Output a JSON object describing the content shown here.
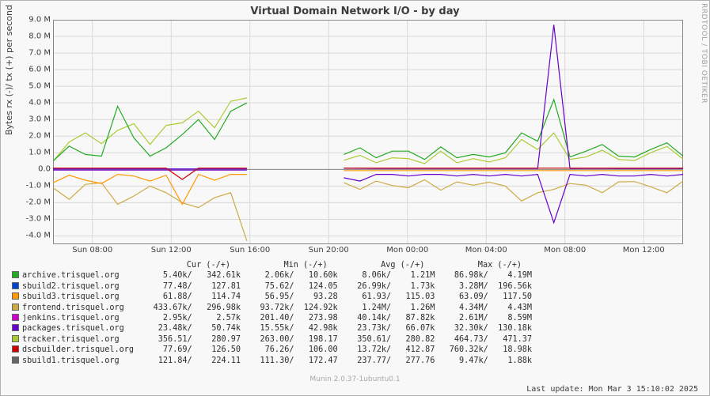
{
  "title": "Virtual Domain Network I/O - by day",
  "y_axis": {
    "label": "Bytes rx (-)/ tx (+) per second",
    "min": -4500000,
    "max": 9000000,
    "ticks": [
      {
        "v": 9000000,
        "label": "9.0 M"
      },
      {
        "v": 8000000,
        "label": "8.0 M"
      },
      {
        "v": 7000000,
        "label": "7.0 M"
      },
      {
        "v": 6000000,
        "label": "6.0 M"
      },
      {
        "v": 5000000,
        "label": "5.0 M"
      },
      {
        "v": 4000000,
        "label": "4.0 M"
      },
      {
        "v": 3000000,
        "label": "3.0 M"
      },
      {
        "v": 2000000,
        "label": "2.0 M"
      },
      {
        "v": 1000000,
        "label": "1.0 M"
      },
      {
        "v": 0,
        "label": "0.0"
      },
      {
        "v": -1000000,
        "label": "-1.0 M"
      },
      {
        "v": -2000000,
        "label": "-2.0 M"
      },
      {
        "v": -3000000,
        "label": "-3.0 M"
      },
      {
        "v": -4000000,
        "label": "-4.0 M"
      }
    ]
  },
  "x_axis": {
    "min": 0,
    "max": 32,
    "ticks": [
      {
        "v": 2,
        "label": "Sun 08:00"
      },
      {
        "v": 6,
        "label": "Sun 12:00"
      },
      {
        "v": 10,
        "label": "Sun 16:00"
      },
      {
        "v": 14,
        "label": "Sun 20:00"
      },
      {
        "v": 18,
        "label": "Mon 00:00"
      },
      {
        "v": 22,
        "label": "Mon 04:00"
      },
      {
        "v": 26,
        "label": "Mon 08:00"
      },
      {
        "v": 30,
        "label": "Mon 12:00"
      }
    ]
  },
  "colors": {
    "archive": "#22aa22",
    "sbuild2": "#0044cc",
    "sbuild3": "#ff9900",
    "frontend": "#ccaa44",
    "jenkins": "#cc00cc",
    "packages": "#6600cc",
    "tracker": "#aacc33",
    "dscbuilder": "#cc0000",
    "sbuild1": "#666666",
    "grid": "#d8d8d8",
    "axis": "#888888",
    "bg": "#f8f8f8"
  },
  "gap": {
    "start": 6.4,
    "end": 24.3
  },
  "series_tx": {
    "archive": [
      500000,
      1400000,
      900000,
      800000,
      3800000,
      1900000,
      800000,
      1300000,
      2100000,
      3000000,
      1800000,
      3500000,
      4000000,
      null,
      null,
      null,
      null,
      null,
      900000,
      1300000,
      700000,
      1100000,
      1100000,
      600000,
      1350000,
      700000,
      900000,
      750000,
      1000000,
      2200000,
      1700000,
      4200000,
      750000,
      1100000,
      1500000,
      800000,
      750000,
      1200000,
      1600000,
      800000
    ],
    "tracker": [
      480000,
      1650000,
      2200000,
      1550000,
      2350000,
      2750000,
      1500000,
      2650000,
      2800000,
      3500000,
      2500000,
      4100000,
      4300000,
      null,
      null,
      null,
      null,
      null,
      550000,
      850000,
      400000,
      700000,
      650000,
      350000,
      1100000,
      400000,
      650000,
      450000,
      700000,
      1800000,
      1200000,
      2200000,
      600000,
      750000,
      1150000,
      600000,
      540000,
      1010000,
      1380000,
      620000
    ],
    "packages": [
      30000,
      30000,
      30000,
      30000,
      30000,
      30000,
      30000,
      30000,
      30000,
      30000,
      30000,
      30000,
      30000,
      null,
      null,
      null,
      null,
      null,
      80000,
      70000,
      60000,
      60000,
      55000,
      60000,
      55000,
      60000,
      55000,
      60000,
      60000,
      60000,
      60000,
      8700000,
      50000,
      60000,
      60000,
      50000,
      50000,
      50000,
      50000,
      50000
    ],
    "dscbuilder": [
      80000,
      80000,
      80000,
      80000,
      80000,
      80000,
      80000,
      80000,
      -600000,
      80000,
      80000,
      80000,
      80000,
      null,
      null,
      null,
      null,
      null,
      80000,
      80000,
      80000,
      80000,
      80000,
      80000,
      80000,
      80000,
      80000,
      80000,
      80000,
      80000,
      80000,
      80000,
      80000,
      80000,
      80000,
      80000,
      80000,
      80000,
      80000,
      80000
    ]
  },
  "series_rx": {
    "frontend": [
      -1100000,
      -1800000,
      -900000,
      -800000,
      -2100000,
      -1600000,
      -1000000,
      -1400000,
      -2000000,
      -2300000,
      -1700000,
      -1400000,
      -4300000,
      null,
      null,
      null,
      null,
      null,
      -800000,
      -1200000,
      -700000,
      -970000,
      -1100000,
      -620000,
      -1250000,
      -750000,
      -950000,
      -770000,
      -1000000,
      -1900000,
      -1400000,
      -1200000,
      -850000,
      -950000,
      -1400000,
      -750000,
      -730000,
      -1050000,
      -1400000,
      -700000
    ],
    "sbuild3": [
      -800000,
      -350000,
      -650000,
      -850000,
      -300000,
      -400000,
      -700000,
      -350000,
      -2100000,
      -300000,
      -650000,
      -300000,
      -300000,
      null,
      null,
      null,
      null,
      null,
      -70000,
      -70000,
      -70000,
      -70000,
      -70000,
      -70000,
      -70000,
      -70000,
      -70000,
      -70000,
      -70000,
      -70000,
      -70000,
      -70000,
      -70000,
      -70000,
      -70000,
      -70000,
      -70000,
      -70000,
      -70000,
      -70000
    ],
    "packages": [
      -40000,
      -40000,
      -40000,
      -40000,
      -40000,
      -40000,
      -40000,
      -40000,
      -40000,
      -40000,
      -40000,
      -40000,
      -40000,
      null,
      null,
      null,
      null,
      null,
      -500000,
      -700000,
      -300000,
      -300000,
      -400000,
      -300000,
      -300000,
      -400000,
      -300000,
      -400000,
      -300000,
      -400000,
      -300000,
      -3200000,
      -300000,
      -400000,
      -300000,
      -400000,
      -400000,
      -300000,
      -400000,
      -300000
    ]
  },
  "legend": {
    "header": {
      "cur": "Cur (-/+)",
      "min": "Min (-/+)",
      "avg": "Avg (-/+)",
      "max": "Max (-/+)"
    },
    "rows": [
      {
        "label": "archive.trisquel.org",
        "color": "archive",
        "cur_n": "5.40k",
        "cur_p": "342.61k",
        "min_n": "2.06k",
        "min_p": "10.60k",
        "avg_n": "8.06k",
        "avg_p": "1.21M",
        "max_n": "86.98k",
        "max_p": "4.19M"
      },
      {
        "label": "sbuild2.trisquel.org",
        "color": "sbuild2",
        "cur_n": "77.48",
        "cur_p": "127.81",
        "min_n": "75.62",
        "min_p": "124.05",
        "avg_n": "26.99k",
        "avg_p": "1.73k",
        "max_n": "3.28M",
        "max_p": "196.56k"
      },
      {
        "label": "sbuild3.trisquel.org",
        "color": "sbuild3",
        "cur_n": "61.88",
        "cur_p": "114.74",
        "min_n": "56.95",
        "min_p": "93.28",
        "avg_n": "61.93",
        "avg_p": "115.03",
        "max_n": "63.09",
        "max_p": "117.50"
      },
      {
        "label": "frontend.trisquel.org",
        "color": "frontend",
        "cur_n": "433.67k",
        "cur_p": "296.98k",
        "min_n": "93.72k",
        "min_p": "124.92k",
        "avg_n": "1.24M",
        "avg_p": "1.26M",
        "max_n": "4.34M",
        "max_p": "4.43M"
      },
      {
        "label": "jenkins.trisquel.org",
        "color": "jenkins",
        "cur_n": "2.95k",
        "cur_p": "2.57k",
        "min_n": "201.40",
        "min_p": "273.98",
        "avg_n": "40.14k",
        "avg_p": "87.82k",
        "max_n": "2.61M",
        "max_p": "8.59M"
      },
      {
        "label": "packages.trisquel.org",
        "color": "packages",
        "cur_n": "23.48k",
        "cur_p": "50.74k",
        "min_n": "15.55k",
        "min_p": "42.98k",
        "avg_n": "23.73k",
        "avg_p": "66.07k",
        "max_n": "32.30k",
        "max_p": "130.18k"
      },
      {
        "label": "tracker.trisquel.org",
        "color": "tracker",
        "cur_n": "356.51",
        "cur_p": "280.97",
        "min_n": "263.00",
        "min_p": "198.17",
        "avg_n": "350.61",
        "avg_p": "280.82",
        "max_n": "464.73",
        "max_p": "471.37"
      },
      {
        "label": "dscbuilder.trisquel.org",
        "color": "dscbuilder",
        "cur_n": "77.69",
        "cur_p": "126.50",
        "min_n": "76.26",
        "min_p": "106.00",
        "avg_n": "13.72k",
        "avg_p": "412.87",
        "max_n": "760.32k",
        "max_p": "18.98k"
      },
      {
        "label": "sbuild1.trisquel.org",
        "color": "sbuild1",
        "cur_n": "121.84",
        "cur_p": "224.11",
        "min_n": "111.30",
        "min_p": "172.47",
        "avg_n": "237.77",
        "avg_p": "277.76",
        "max_n": "9.47k",
        "max_p": "1.88k"
      }
    ]
  },
  "footer": {
    "version": "Munin 2.0.37-1ubuntu0.1",
    "update": "Last update: Mon Mar  3 15:10:02 2025",
    "side": "RRDTOOL / TOBI OETIKER"
  },
  "style": {
    "line_width": 1.2,
    "title_fontsize": 13,
    "label_fontsize": 11,
    "tick_fontsize": 10
  }
}
